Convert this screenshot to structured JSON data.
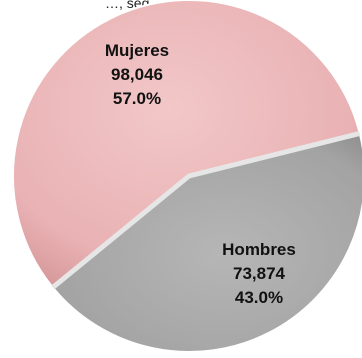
{
  "header": {
    "partial_text": "…, seg"
  },
  "chart_data": {
    "type": "pie",
    "categories": [
      "Mujeres",
      "Hombres"
    ],
    "values": [
      98046,
      73874
    ],
    "value_labels": [
      "98,046",
      "73,874"
    ],
    "percent_labels": [
      "57.0%",
      "43.0%"
    ],
    "colors": [
      "#e9b2b4",
      "#a6a6a6"
    ]
  }
}
